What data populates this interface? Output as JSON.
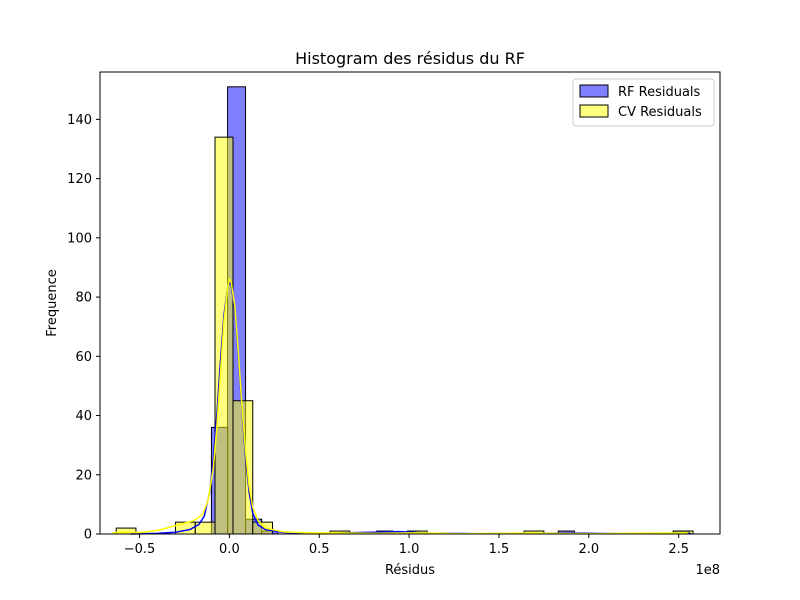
{
  "chart_data": {
    "type": "histogram",
    "title": "Histogram des résidus du RF",
    "xlabel": "Résidus",
    "ylabel": "Frequence",
    "x_offset_label": "1e8",
    "xlim": [
      -0.72,
      2.73
    ],
    "ylim": [
      0,
      156
    ],
    "x_ticks": [
      -0.5,
      0.0,
      0.5,
      1.0,
      1.5,
      2.0,
      2.5
    ],
    "x_tick_labels": [
      "−0.5",
      "0.0",
      "0.5",
      "1.0",
      "1.5",
      "2.0",
      "2.5"
    ],
    "y_ticks": [
      0,
      20,
      40,
      60,
      80,
      100,
      120,
      140
    ],
    "y_tick_labels": [
      "0",
      "20",
      "40",
      "60",
      "80",
      "100",
      "120",
      "140"
    ],
    "grid": false,
    "legend_position": "top-right",
    "series": [
      {
        "name": "RF Residuals",
        "fill": "#0000ff",
        "fill_opacity": 0.5,
        "line": "#0000ff",
        "bins": [
          {
            "x0": -0.1,
            "x1": -0.01,
            "count": 36
          },
          {
            "x0": -0.01,
            "x1": 0.09,
            "count": 151
          },
          {
            "x0": 0.09,
            "x1": 0.18,
            "count": 5
          },
          {
            "x0": 0.18,
            "x1": 0.27,
            "count": 1
          },
          {
            "x0": 0.82,
            "x1": 0.91,
            "count": 1
          },
          {
            "x0": 1.83,
            "x1": 1.92,
            "count": 1
          },
          {
            "x0": 2.47,
            "x1": 2.56,
            "count": 1
          }
        ],
        "kde": [
          [
            -0.55,
            0
          ],
          [
            -0.4,
            0.2
          ],
          [
            -0.3,
            0.6
          ],
          [
            -0.22,
            1.5
          ],
          [
            -0.17,
            3.2
          ],
          [
            -0.14,
            6
          ],
          [
            -0.11,
            14
          ],
          [
            -0.09,
            25
          ],
          [
            -0.07,
            40
          ],
          [
            -0.05,
            58
          ],
          [
            -0.03,
            74
          ],
          [
            -0.01,
            83
          ],
          [
            0.0,
            85
          ],
          [
            0.01,
            84
          ],
          [
            0.03,
            76
          ],
          [
            0.05,
            60
          ],
          [
            0.07,
            42
          ],
          [
            0.09,
            26
          ],
          [
            0.11,
            14
          ],
          [
            0.13,
            7
          ],
          [
            0.16,
            3
          ],
          [
            0.2,
            1.5
          ],
          [
            0.3,
            0.5
          ],
          [
            0.5,
            0.2
          ],
          [
            0.8,
            0.6
          ],
          [
            0.95,
            0.8
          ],
          [
            1.1,
            0.3
          ],
          [
            1.4,
            0.1
          ],
          [
            1.7,
            0.2
          ],
          [
            1.9,
            0.3
          ],
          [
            2.2,
            0.1
          ],
          [
            2.5,
            0.3
          ],
          [
            2.57,
            0.1
          ]
        ]
      },
      {
        "name": "CV Residuals",
        "fill": "#ffff00",
        "fill_opacity": 0.5,
        "line": "#ffff00",
        "bins": [
          {
            "x0": -0.63,
            "x1": -0.52,
            "count": 2
          },
          {
            "x0": -0.3,
            "x1": -0.19,
            "count": 4
          },
          {
            "x0": -0.19,
            "x1": -0.08,
            "count": 4
          },
          {
            "x0": -0.08,
            "x1": 0.02,
            "count": 134
          },
          {
            "x0": 0.02,
            "x1": 0.13,
            "count": 45
          },
          {
            "x0": 0.13,
            "x1": 0.24,
            "count": 4
          },
          {
            "x0": 0.56,
            "x1": 0.67,
            "count": 1
          },
          {
            "x0": 0.99,
            "x1": 1.1,
            "count": 1
          },
          {
            "x0": 1.64,
            "x1": 1.75,
            "count": 1
          },
          {
            "x0": 2.47,
            "x1": 2.58,
            "count": 1
          }
        ],
        "kde": [
          [
            -0.65,
            0.4
          ],
          [
            -0.6,
            0.6
          ],
          [
            -0.5,
            0.5
          ],
          [
            -0.4,
            1.2
          ],
          [
            -0.32,
            2.5
          ],
          [
            -0.26,
            3.5
          ],
          [
            -0.2,
            4.5
          ],
          [
            -0.15,
            6.5
          ],
          [
            -0.12,
            11
          ],
          [
            -0.09,
            22
          ],
          [
            -0.07,
            36
          ],
          [
            -0.05,
            54
          ],
          [
            -0.03,
            72
          ],
          [
            -0.01,
            83
          ],
          [
            0.0,
            86
          ],
          [
            0.01,
            85
          ],
          [
            0.03,
            77
          ],
          [
            0.05,
            61
          ],
          [
            0.07,
            43
          ],
          [
            0.09,
            28
          ],
          [
            0.11,
            16
          ],
          [
            0.13,
            9
          ],
          [
            0.16,
            4.5
          ],
          [
            0.2,
            2
          ],
          [
            0.3,
            0.7
          ],
          [
            0.45,
            0.4
          ],
          [
            0.6,
            0.4
          ],
          [
            0.8,
            0.2
          ],
          [
            1.05,
            0.4
          ],
          [
            1.3,
            0.1
          ],
          [
            1.65,
            0.3
          ],
          [
            2.0,
            0.1
          ],
          [
            2.55,
            0.4
          ]
        ]
      }
    ]
  }
}
